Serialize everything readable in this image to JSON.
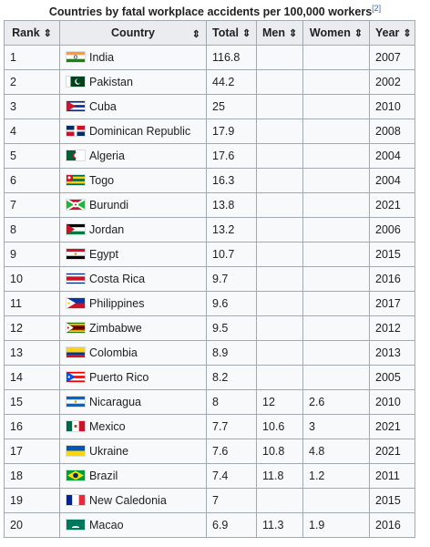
{
  "caption": "Countries by fatal workplace accidents per 100,000 workers",
  "footnote": "[2]",
  "headers": [
    "Rank",
    "Country",
    "Total",
    "Men",
    "Women",
    "Year"
  ],
  "sort_icon": "sort-arrows-icon",
  "rows": [
    {
      "rank": "1",
      "country": "India",
      "total": "116.8",
      "men": "",
      "women": "",
      "year": "2007",
      "flag": "india-flag"
    },
    {
      "rank": "2",
      "country": "Pakistan",
      "total": "44.2",
      "men": "",
      "women": "",
      "year": "2002",
      "flag": "pakistan-flag"
    },
    {
      "rank": "3",
      "country": "Cuba",
      "total": "25",
      "men": "",
      "women": "",
      "year": "2010",
      "flag": "cuba-flag"
    },
    {
      "rank": "4",
      "country": "Dominican Republic",
      "total": "17.9",
      "men": "",
      "women": "",
      "year": "2008",
      "flag": "dominican-republic-flag"
    },
    {
      "rank": "5",
      "country": "Algeria",
      "total": "17.6",
      "men": "",
      "women": "",
      "year": "2004",
      "flag": "algeria-flag"
    },
    {
      "rank": "6",
      "country": "Togo",
      "total": "16.3",
      "men": "",
      "women": "",
      "year": "2004",
      "flag": "togo-flag"
    },
    {
      "rank": "7",
      "country": "Burundi",
      "total": "13.8",
      "men": "",
      "women": "",
      "year": "2021",
      "flag": "burundi-flag"
    },
    {
      "rank": "8",
      "country": "Jordan",
      "total": "13.2",
      "men": "",
      "women": "",
      "year": "2006",
      "flag": "jordan-flag"
    },
    {
      "rank": "9",
      "country": "Egypt",
      "total": "10.7",
      "men": "",
      "women": "",
      "year": "2015",
      "flag": "egypt-flag"
    },
    {
      "rank": "10",
      "country": "Costa Rica",
      "total": "9.7",
      "men": "",
      "women": "",
      "year": "2016",
      "flag": "costa-rica-flag"
    },
    {
      "rank": "11",
      "country": "Philippines",
      "total": "9.6",
      "men": "",
      "women": "",
      "year": "2017",
      "flag": "philippines-flag"
    },
    {
      "rank": "12",
      "country": "Zimbabwe",
      "total": "9.5",
      "men": "",
      "women": "",
      "year": "2012",
      "flag": "zimbabwe-flag"
    },
    {
      "rank": "13",
      "country": "Colombia",
      "total": "8.9",
      "men": "",
      "women": "",
      "year": "2013",
      "flag": "colombia-flag"
    },
    {
      "rank": "14",
      "country": "Puerto Rico",
      "total": "8.2",
      "men": "",
      "women": "",
      "year": "2005",
      "flag": "puerto-rico-flag"
    },
    {
      "rank": "15",
      "country": "Nicaragua",
      "total": "8",
      "men": "12",
      "women": "2.6",
      "year": "2010",
      "flag": "nicaragua-flag"
    },
    {
      "rank": "16",
      "country": "Mexico",
      "total": "7.7",
      "men": "10.6",
      "women": "3",
      "year": "2021",
      "flag": "mexico-flag"
    },
    {
      "rank": "17",
      "country": "Ukraine",
      "total": "7.6",
      "men": "10.8",
      "women": "4.8",
      "year": "2021",
      "flag": "ukraine-flag"
    },
    {
      "rank": "18",
      "country": "Brazil",
      "total": "7.4",
      "men": "11.8",
      "women": "1.2",
      "year": "2011",
      "flag": "brazil-flag"
    },
    {
      "rank": "19",
      "country": "New Caledonia",
      "total": "7",
      "men": "",
      "women": "",
      "year": "2015",
      "flag": "new-caledonia-flag"
    },
    {
      "rank": "20",
      "country": "Macao",
      "total": "6.9",
      "men": "11.3",
      "women": "1.9",
      "year": "2016",
      "flag": "macao-flag"
    }
  ]
}
